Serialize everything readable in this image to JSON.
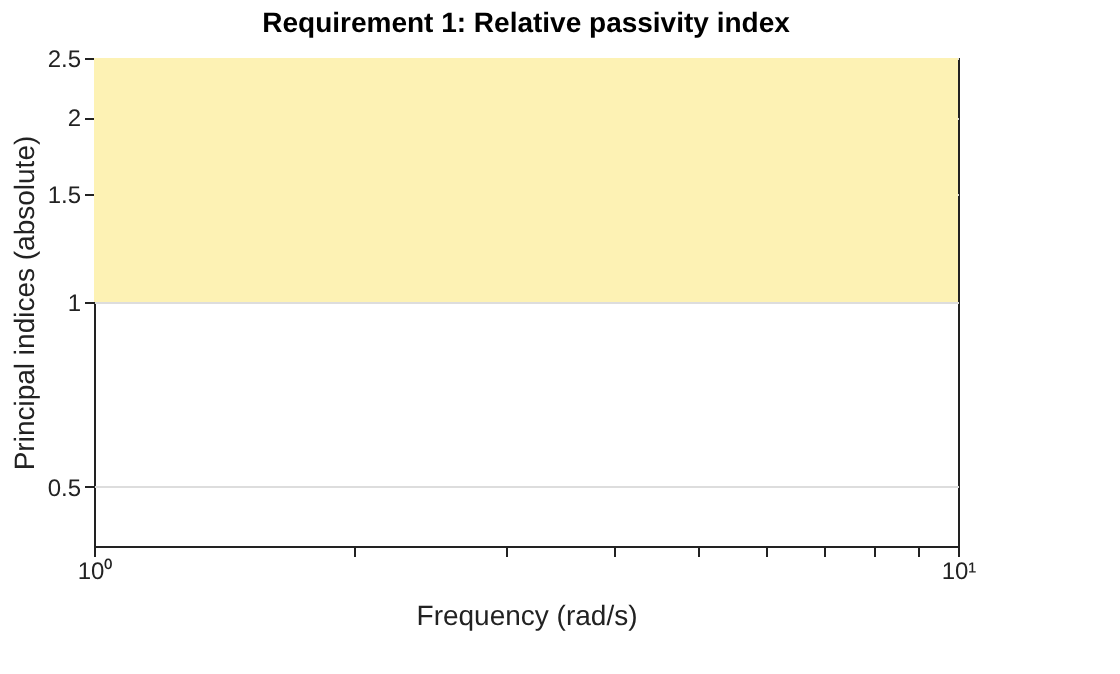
{
  "chart_data": {
    "type": "line",
    "title": "Requirement 1: Relative passivity index",
    "xlabel": "Frequency (rad/s)",
    "ylabel": "Principal indices (absolute)",
    "log": "xy",
    "grid": "y",
    "xlim": [
      1,
      10
    ],
    "ylim": [
      0.4,
      2.5
    ],
    "xticks": [
      {
        "value": 1,
        "label": "10⁰"
      },
      {
        "value": 2,
        "label": null
      },
      {
        "value": 3,
        "label": null
      },
      {
        "value": 4,
        "label": null
      },
      {
        "value": 5,
        "label": null
      },
      {
        "value": 6,
        "label": null
      },
      {
        "value": 7,
        "label": null
      },
      {
        "value": 8,
        "label": null
      },
      {
        "value": 9,
        "label": null
      },
      {
        "value": 10,
        "label": "10¹"
      }
    ],
    "yticks": [
      0.5,
      1,
      1.5,
      2,
      2.5
    ],
    "bands": [
      {
        "axis": "y",
        "from": 1,
        "to": 2.5,
        "color": "#fdf2b4"
      }
    ]
  }
}
